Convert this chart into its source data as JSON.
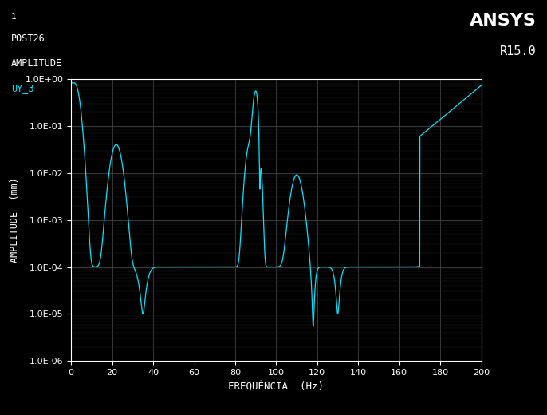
{
  "title_left_1": "1",
  "title_left_2": "POST26",
  "title_left_3": "AMPLITUDE",
  "title_left_4": "UY_3",
  "title_right_1": "ANSYS",
  "title_right_2": "R15.0",
  "xlabel": "FREQUÊNCIA  (Hz)",
  "ylabel": "AMPLITUDE  (mm)",
  "bg_color": "#000000",
  "plot_bg_color": "#000000",
  "curve_color": "#00E5FF",
  "grid_color": "#444444",
  "text_color": "#FFFFFF",
  "label_color_4": "#00E5FF",
  "xmin": 0,
  "xmax": 200,
  "ymin": 1e-06,
  "ymax": 1.0,
  "xticks": [
    0,
    20,
    40,
    60,
    80,
    100,
    120,
    140,
    160,
    180,
    200
  ],
  "ytick_labels": [
    "1.0E-06",
    "1.0E-05",
    "1.0E-04",
    "1.0E-03",
    "1.0E-02",
    "1.0E-01",
    "1.0E+00"
  ]
}
